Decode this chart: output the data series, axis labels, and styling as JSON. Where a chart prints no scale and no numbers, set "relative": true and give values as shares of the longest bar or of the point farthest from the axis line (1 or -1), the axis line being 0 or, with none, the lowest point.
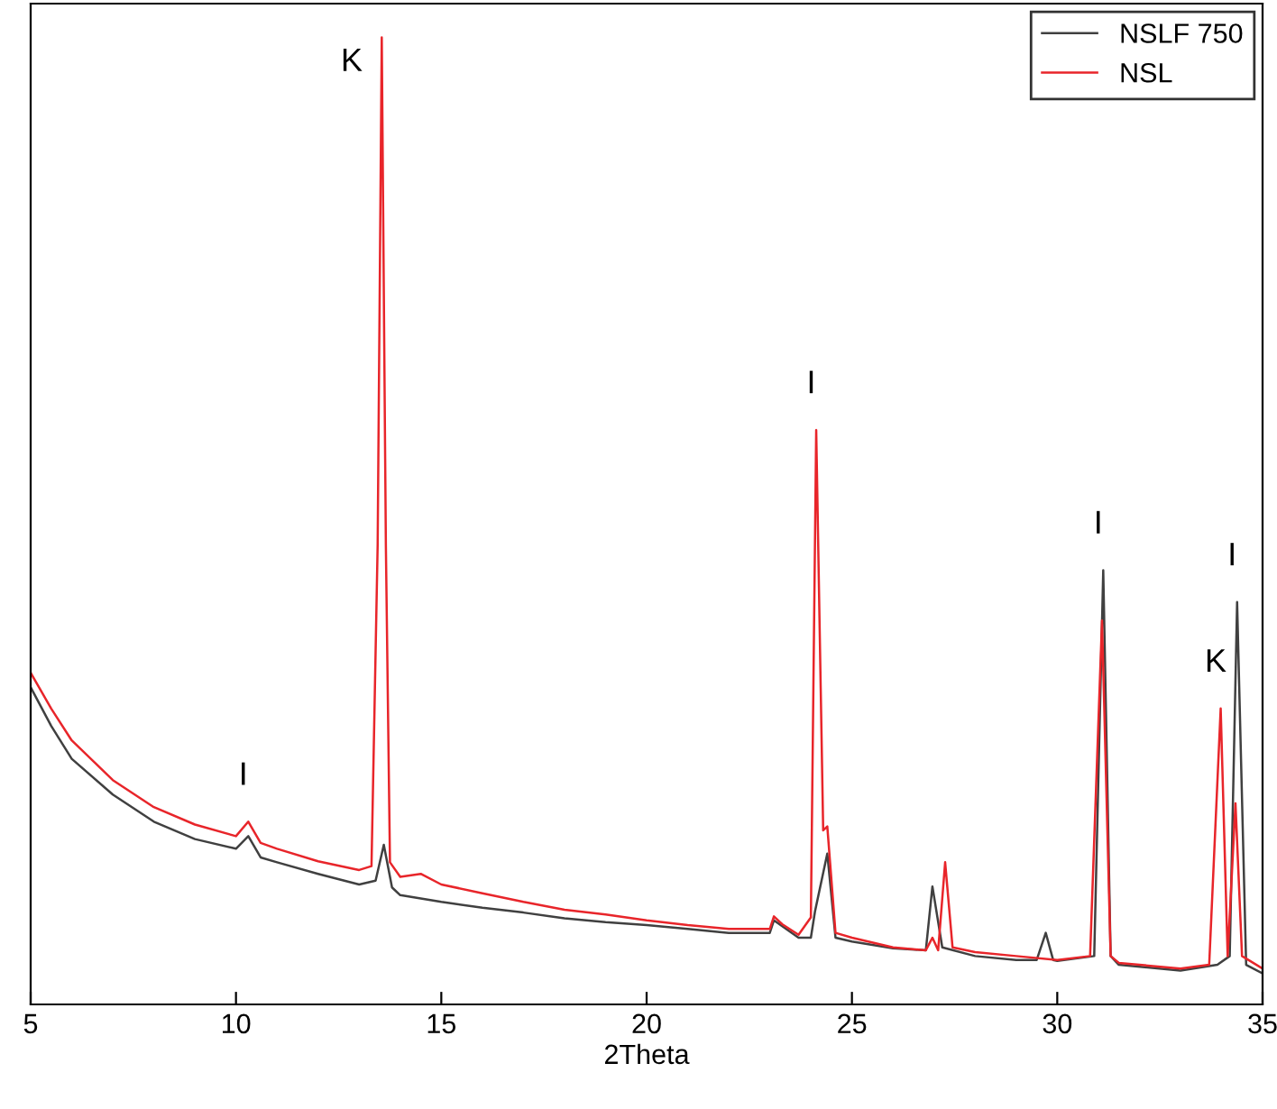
{
  "chart_data": {
    "type": "line",
    "xlabel": "2Theta",
    "relative": true,
    "xlim": [
      5,
      35
    ],
    "xticks": [
      5,
      10,
      15,
      20,
      25,
      30,
      35
    ],
    "legend": "top right",
    "grid": false,
    "series": [
      {
        "name": "NSLF 750",
        "color": "#404040",
        "x": [
          5,
          5.5,
          6,
          7,
          8,
          9,
          10,
          10.3,
          10.6,
          11,
          12,
          13,
          13.4,
          13.6,
          13.8,
          14,
          15,
          16,
          17,
          18,
          19,
          20,
          21,
          22,
          23,
          23.1,
          23.7,
          24.0,
          24.1,
          24.4,
          24.6,
          25,
          26,
          26.8,
          26.96,
          27.2,
          28,
          29,
          29.5,
          29.72,
          29.9,
          30,
          30.9,
          31.12,
          31.3,
          31.5,
          33,
          33.9,
          34.2,
          34.38,
          34.6,
          35
        ],
        "values": [
          0.328,
          0.288,
          0.254,
          0.217,
          0.189,
          0.171,
          0.161,
          0.174,
          0.152,
          0.147,
          0.135,
          0.124,
          0.128,
          0.165,
          0.121,
          0.113,
          0.106,
          0.1,
          0.095,
          0.089,
          0.085,
          0.082,
          0.078,
          0.074,
          0.074,
          0.087,
          0.069,
          0.069,
          0.096,
          0.156,
          0.069,
          0.065,
          0.058,
          0.056,
          0.122,
          0.059,
          0.05,
          0.046,
          0.046,
          0.074,
          0.046,
          0.045,
          0.05,
          0.449,
          0.05,
          0.041,
          0.035,
          0.041,
          0.05,
          0.416,
          0.041,
          0.032
        ]
      },
      {
        "name": "NSL",
        "color": "#e8252a",
        "x": [
          5,
          5.5,
          6,
          7,
          8,
          9,
          10,
          10.3,
          10.6,
          11,
          12,
          13,
          13.3,
          13.45,
          13.55,
          13.65,
          13.75,
          14,
          14.5,
          15,
          16,
          17,
          18,
          19,
          20,
          21,
          22,
          23,
          23.1,
          23.3,
          23.7,
          24.0,
          24.13,
          24.3,
          24.4,
          24.6,
          25,
          26,
          26.8,
          26.96,
          27.1,
          27.27,
          27.45,
          28,
          29,
          30,
          30.8,
          31.09,
          31.3,
          31.5,
          32,
          33,
          33.7,
          33.98,
          34.15,
          34.34,
          34.5,
          35
        ],
        "values": [
          0.343,
          0.306,
          0.273,
          0.232,
          0.204,
          0.186,
          0.174,
          0.189,
          0.167,
          0.161,
          0.148,
          0.139,
          0.143,
          0.475,
          1.0,
          0.475,
          0.147,
          0.132,
          0.135,
          0.124,
          0.115,
          0.106,
          0.098,
          0.093,
          0.087,
          0.082,
          0.078,
          0.078,
          0.091,
          0.083,
          0.072,
          0.09,
          0.594,
          0.18,
          0.184,
          0.074,
          0.069,
          0.059,
          0.056,
          0.069,
          0.056,
          0.147,
          0.059,
          0.054,
          0.05,
          0.046,
          0.05,
          0.397,
          0.05,
          0.043,
          0.041,
          0.037,
          0.041,
          0.306,
          0.05,
          0.208,
          0.05,
          0.037
        ]
      }
    ],
    "annotations": [
      {
        "text": "I",
        "x": 10.3,
        "y": 0.189
      },
      {
        "text": "K",
        "x": 13.55,
        "y": 1.0
      },
      {
        "text": "I",
        "x": 24.13,
        "y": 0.594
      },
      {
        "text": "I",
        "x": 31.12,
        "y": 0.449
      },
      {
        "text": "K",
        "x": 33.98,
        "y": 0.306
      },
      {
        "text": "I",
        "x": 34.38,
        "y": 0.416
      }
    ]
  }
}
